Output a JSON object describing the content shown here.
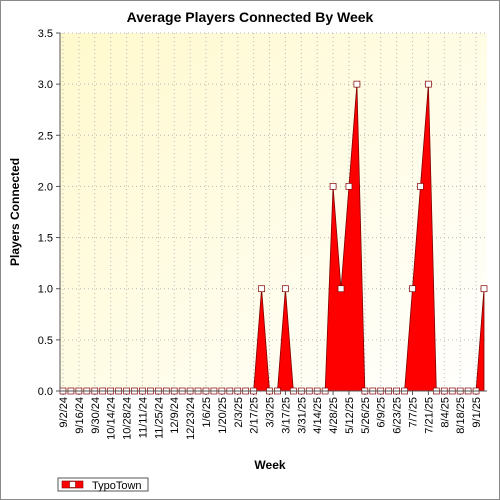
{
  "chart_data": {
    "type": "area",
    "title": "Average Players Connected By Week",
    "xlabel": "Week",
    "ylabel": "Players Connected",
    "ylim": [
      0,
      3.5
    ],
    "y_ticks": [
      0.0,
      0.5,
      1.0,
      1.5,
      2.0,
      2.5,
      3.0,
      3.5
    ],
    "y_tick_labels": [
      "0.0",
      "0.5",
      "1.0",
      "1.5",
      "2.0",
      "2.5",
      "3.0",
      "3.5"
    ],
    "grid": true,
    "legend_position": "bottom-left",
    "x_tick_labels": [
      "9/2/24",
      "9/16/24",
      "9/30/24",
      "10/14/24",
      "10/28/24",
      "11/11/24",
      "11/25/24",
      "12/9/24",
      "12/23/24",
      "1/6/25",
      "1/20/25",
      "2/3/25",
      "2/17/25",
      "3/3/25",
      "3/17/25",
      "3/31/25",
      "4/14/25",
      "4/28/25",
      "5/12/25",
      "5/26/25",
      "6/9/25",
      "6/23/25",
      "7/7/25",
      "7/21/25",
      "8/4/25",
      "8/18/25",
      "9/1/25"
    ],
    "x": [
      "9/2/24",
      "9/9/24",
      "9/16/24",
      "9/23/24",
      "9/30/24",
      "10/7/24",
      "10/14/24",
      "10/21/24",
      "10/28/24",
      "11/4/24",
      "11/11/24",
      "11/18/24",
      "11/25/24",
      "12/2/24",
      "12/9/24",
      "12/16/24",
      "12/23/24",
      "12/30/24",
      "1/6/25",
      "1/13/25",
      "1/20/25",
      "1/27/25",
      "2/3/25",
      "2/10/25",
      "2/17/25",
      "2/24/25",
      "3/3/25",
      "3/10/25",
      "3/17/25",
      "3/24/25",
      "3/31/25",
      "4/7/25",
      "4/14/25",
      "4/21/25",
      "4/28/25",
      "5/5/25",
      "5/12/25",
      "5/19/25",
      "5/26/25",
      "6/2/25",
      "6/9/25",
      "6/16/25",
      "6/23/25",
      "6/30/25",
      "7/7/25",
      "7/14/25",
      "7/21/25",
      "7/28/25",
      "8/4/25",
      "8/11/25",
      "8/18/25",
      "8/25/25",
      "9/1/25",
      "9/8/25"
    ],
    "series": [
      {
        "name": "TypoTown",
        "color": "#ff0000",
        "values": [
          0,
          0,
          0,
          0,
          0,
          0,
          0,
          0,
          0,
          0,
          0,
          0,
          0,
          0,
          0,
          0,
          0,
          0,
          0,
          0,
          0,
          0,
          0,
          0,
          0,
          1,
          0,
          0,
          1,
          0,
          0,
          0,
          0,
          0,
          2,
          1,
          2,
          3,
          0,
          0,
          0,
          0,
          0,
          0,
          1,
          2,
          3,
          0,
          0,
          0,
          0,
          0,
          0,
          1
        ]
      }
    ],
    "colors": {
      "plot_bg_top": "#fffbd0",
      "plot_bg_bottom": "#ffffff",
      "area": "#ff0000"
    }
  }
}
